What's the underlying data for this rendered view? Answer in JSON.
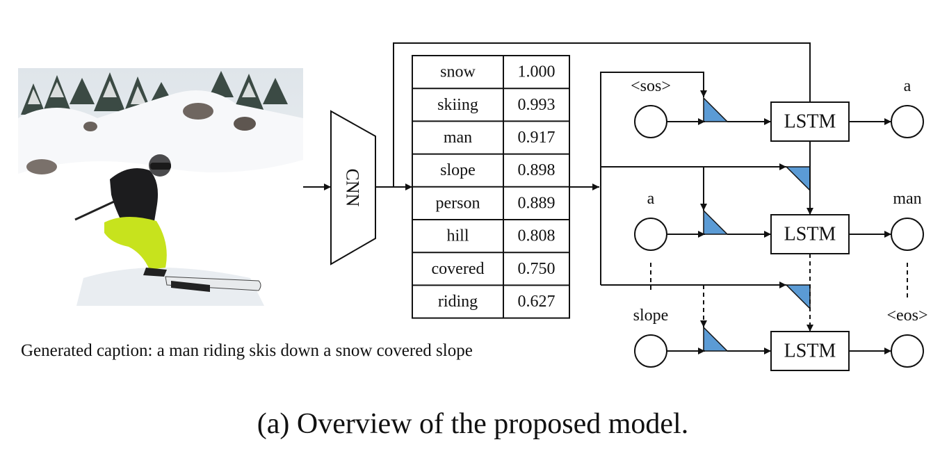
{
  "cnn_label": "CNN",
  "attributes": [
    {
      "word": "snow",
      "score": "1.000"
    },
    {
      "word": "skiing",
      "score": "0.993"
    },
    {
      "word": "man",
      "score": "0.917"
    },
    {
      "word": "slope",
      "score": "0.898"
    },
    {
      "word": "person",
      "score": "0.889"
    },
    {
      "word": "hill",
      "score": "0.808"
    },
    {
      "word": "covered",
      "score": "0.750"
    },
    {
      "word": "riding",
      "score": "0.627"
    }
  ],
  "rows": [
    {
      "input": "<sos>",
      "cell": "LSTM",
      "output": "a"
    },
    {
      "input": "a",
      "cell": "LSTM",
      "output": "man"
    },
    {
      "input": "slope",
      "cell": "LSTM",
      "output": "<eos>"
    }
  ],
  "generated_caption": "Generated caption: a man riding skis down a snow covered slope",
  "figure_caption": "(a) Overview of the proposed model.",
  "colors": {
    "attention": "#5b9bd5",
    "stroke": "#111111"
  }
}
